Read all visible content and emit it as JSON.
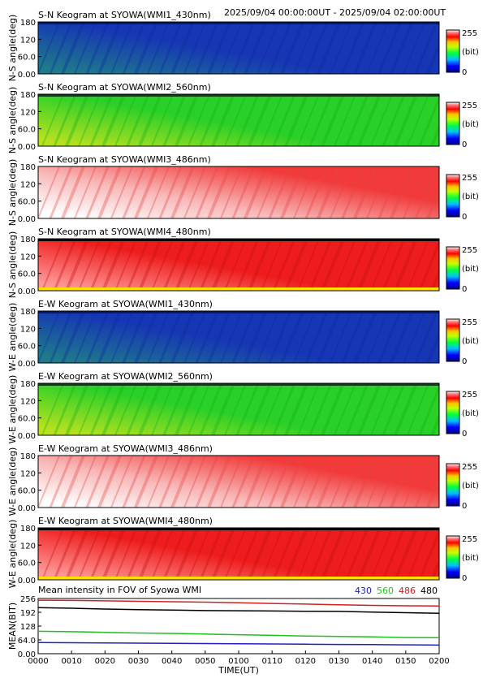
{
  "header": {
    "time_range": "2025/09/04 00:00:00UT - 2025/09/04 02:00:00UT"
  },
  "colorbar": {
    "max_label": "255",
    "unit_label": "(bit)",
    "min_label": "0"
  },
  "keograms": [
    {
      "title": "S-N Keogram at SYOWA(WMI1_430nm)",
      "ylabel": "N-S angle(deg)",
      "color": "blue",
      "ticks": [
        "180",
        "120",
        "60.0",
        "0.00"
      ],
      "colorbar_ticks": [
        "255",
        "(bit)",
        "0"
      ]
    },
    {
      "title": "S-N Keogram at SYOWA(WMI2_560nm)",
      "ylabel": "N-S angle(deg)",
      "color": "green",
      "ticks": [
        "180",
        "120",
        "60.0",
        "0.00"
      ],
      "colorbar_ticks": [
        "255",
        "(bit)",
        "0"
      ]
    },
    {
      "title": "S-N Keogram at SYOWA(WMI3_486nm)",
      "ylabel": "N-S angle(deg)",
      "color": "lightred",
      "ticks": [
        "180",
        "120",
        "60.0",
        "0.00"
      ],
      "colorbar_ticks": [
        "255",
        "(bit)",
        "0"
      ]
    },
    {
      "title": "S-N Keogram at SYOWA(WMI4_480nm)",
      "ylabel": "N-S angle(deg)",
      "color": "red",
      "ticks": [
        "180",
        "120",
        "60.0",
        "0.00"
      ],
      "colorbar_ticks": [
        "255",
        "(bit)",
        "0"
      ]
    },
    {
      "title": "E-W Keogram at SYOWA(WMI1_430nm)",
      "ylabel": "W-E angle(deg)",
      "color": "blue",
      "ticks": [
        "180",
        "120",
        "60.0",
        "0.00"
      ],
      "colorbar_ticks": [
        "255",
        "(bit)",
        "0"
      ]
    },
    {
      "title": "E-W Keogram at SYOWA(WMI2_560nm)",
      "ylabel": "W-E angle(deg)",
      "color": "green",
      "ticks": [
        "180",
        "120",
        "60.0",
        "0.00"
      ],
      "colorbar_ticks": [
        "255",
        "(bit)",
        "0"
      ]
    },
    {
      "title": "E-W Keogram at SYOWA(WMI3_486nm)",
      "ylabel": "W-E angle(deg)",
      "color": "lightred",
      "ticks": [
        "180",
        "120",
        "60.0",
        "0.00"
      ],
      "colorbar_ticks": [
        "255",
        "(bit)",
        "0"
      ]
    },
    {
      "title": "E-W Keogram at SYOWA(WMI4_480nm)",
      "ylabel": "W-E angle(deg)",
      "color": "red",
      "ticks": [
        "180",
        "120",
        "60.0",
        "0.00"
      ],
      "colorbar_ticks": [
        "255",
        "(bit)",
        "0"
      ]
    }
  ],
  "mean_panel": {
    "title": "Mean intensity in FOV of Syowa WMI",
    "ylabel": "MEAN(BIT)",
    "ticks": [
      "256",
      "192",
      "128",
      "64.0",
      "0.00"
    ],
    "legend": [
      {
        "label": "430",
        "color": "#2020c0"
      },
      {
        "label": "560",
        "color": "#20c020"
      },
      {
        "label": "486",
        "color": "#d02020"
      },
      {
        "label": "480",
        "color": "#000000"
      }
    ]
  },
  "time_axis": {
    "xlabel": "TIME(UT)",
    "ticks": [
      "0000",
      "0010",
      "0020",
      "0030",
      "0040",
      "0050",
      "0100",
      "0110",
      "0120",
      "0130",
      "0140",
      "0150",
      "0200"
    ]
  },
  "chart_data": [
    {
      "type": "heatmap",
      "title": "S-N Keogram at SYOWA(WMI1_430nm)",
      "xlabel": "TIME(UT)",
      "ylabel": "N-S angle(deg)",
      "ylim": [
        0,
        180
      ],
      "colorbar_range": [
        0,
        255
      ],
      "colorbar_label": "(bit)"
    },
    {
      "type": "heatmap",
      "title": "S-N Keogram at SYOWA(WMI2_560nm)",
      "xlabel": "TIME(UT)",
      "ylabel": "N-S angle(deg)",
      "ylim": [
        0,
        180
      ],
      "colorbar_range": [
        0,
        255
      ],
      "colorbar_label": "(bit)"
    },
    {
      "type": "heatmap",
      "title": "S-N Keogram at SYOWA(WMI3_486nm)",
      "xlabel": "TIME(UT)",
      "ylabel": "N-S angle(deg)",
      "ylim": [
        0,
        180
      ],
      "colorbar_range": [
        0,
        255
      ],
      "colorbar_label": "(bit)"
    },
    {
      "type": "heatmap",
      "title": "S-N Keogram at SYOWA(WMI4_480nm)",
      "xlabel": "TIME(UT)",
      "ylabel": "N-S angle(deg)",
      "ylim": [
        0,
        180
      ],
      "colorbar_range": [
        0,
        255
      ],
      "colorbar_label": "(bit)"
    },
    {
      "type": "heatmap",
      "title": "E-W Keogram at SYOWA(WMI1_430nm)",
      "xlabel": "TIME(UT)",
      "ylabel": "W-E angle(deg)",
      "ylim": [
        0,
        180
      ],
      "colorbar_range": [
        0,
        255
      ],
      "colorbar_label": "(bit)"
    },
    {
      "type": "heatmap",
      "title": "E-W Keogram at SYOWA(WMI2_560nm)",
      "xlabel": "TIME(UT)",
      "ylabel": "W-E angle(deg)",
      "ylim": [
        0,
        180
      ],
      "colorbar_range": [
        0,
        255
      ],
      "colorbar_label": "(bit)"
    },
    {
      "type": "heatmap",
      "title": "E-W Keogram at SYOWA(WMI3_486nm)",
      "xlabel": "TIME(UT)",
      "ylabel": "W-E angle(deg)",
      "ylim": [
        0,
        180
      ],
      "colorbar_range": [
        0,
        255
      ],
      "colorbar_label": "(bit)"
    },
    {
      "type": "heatmap",
      "title": "E-W Keogram at SYOWA(WMI4_480nm)",
      "xlabel": "TIME(UT)",
      "ylabel": "W-E angle(deg)",
      "ylim": [
        0,
        180
      ],
      "colorbar_range": [
        0,
        255
      ],
      "colorbar_label": "(bit)"
    },
    {
      "type": "line",
      "title": "Mean intensity in FOV of Syowa WMI",
      "xlabel": "TIME(UT)",
      "ylabel": "MEAN(BIT)",
      "ylim": [
        0,
        256
      ],
      "x": [
        "0000",
        "0010",
        "0020",
        "0030",
        "0040",
        "0050",
        "0100",
        "0110",
        "0120",
        "0130",
        "0140",
        "0150",
        "0200"
      ],
      "series": [
        {
          "name": "430",
          "color": "#2020c0",
          "values": [
            52,
            51,
            50,
            49,
            48,
            47,
            46,
            45,
            44,
            43,
            42,
            41,
            40
          ]
        },
        {
          "name": "560",
          "color": "#20c020",
          "values": [
            104,
            102,
            99,
            96,
            94,
            91,
            88,
            85,
            82,
            80,
            78,
            75,
            74
          ]
        },
        {
          "name": "486",
          "color": "#d02020",
          "values": [
            248,
            247,
            245,
            243,
            241,
            239,
            236,
            233,
            230,
            227,
            224,
            222,
            221
          ]
        },
        {
          "name": "480",
          "color": "#000000",
          "values": [
            214,
            211,
            207,
            204,
            202,
            200,
            199,
            198,
            197,
            196,
            193,
            190,
            187
          ]
        }
      ]
    }
  ]
}
